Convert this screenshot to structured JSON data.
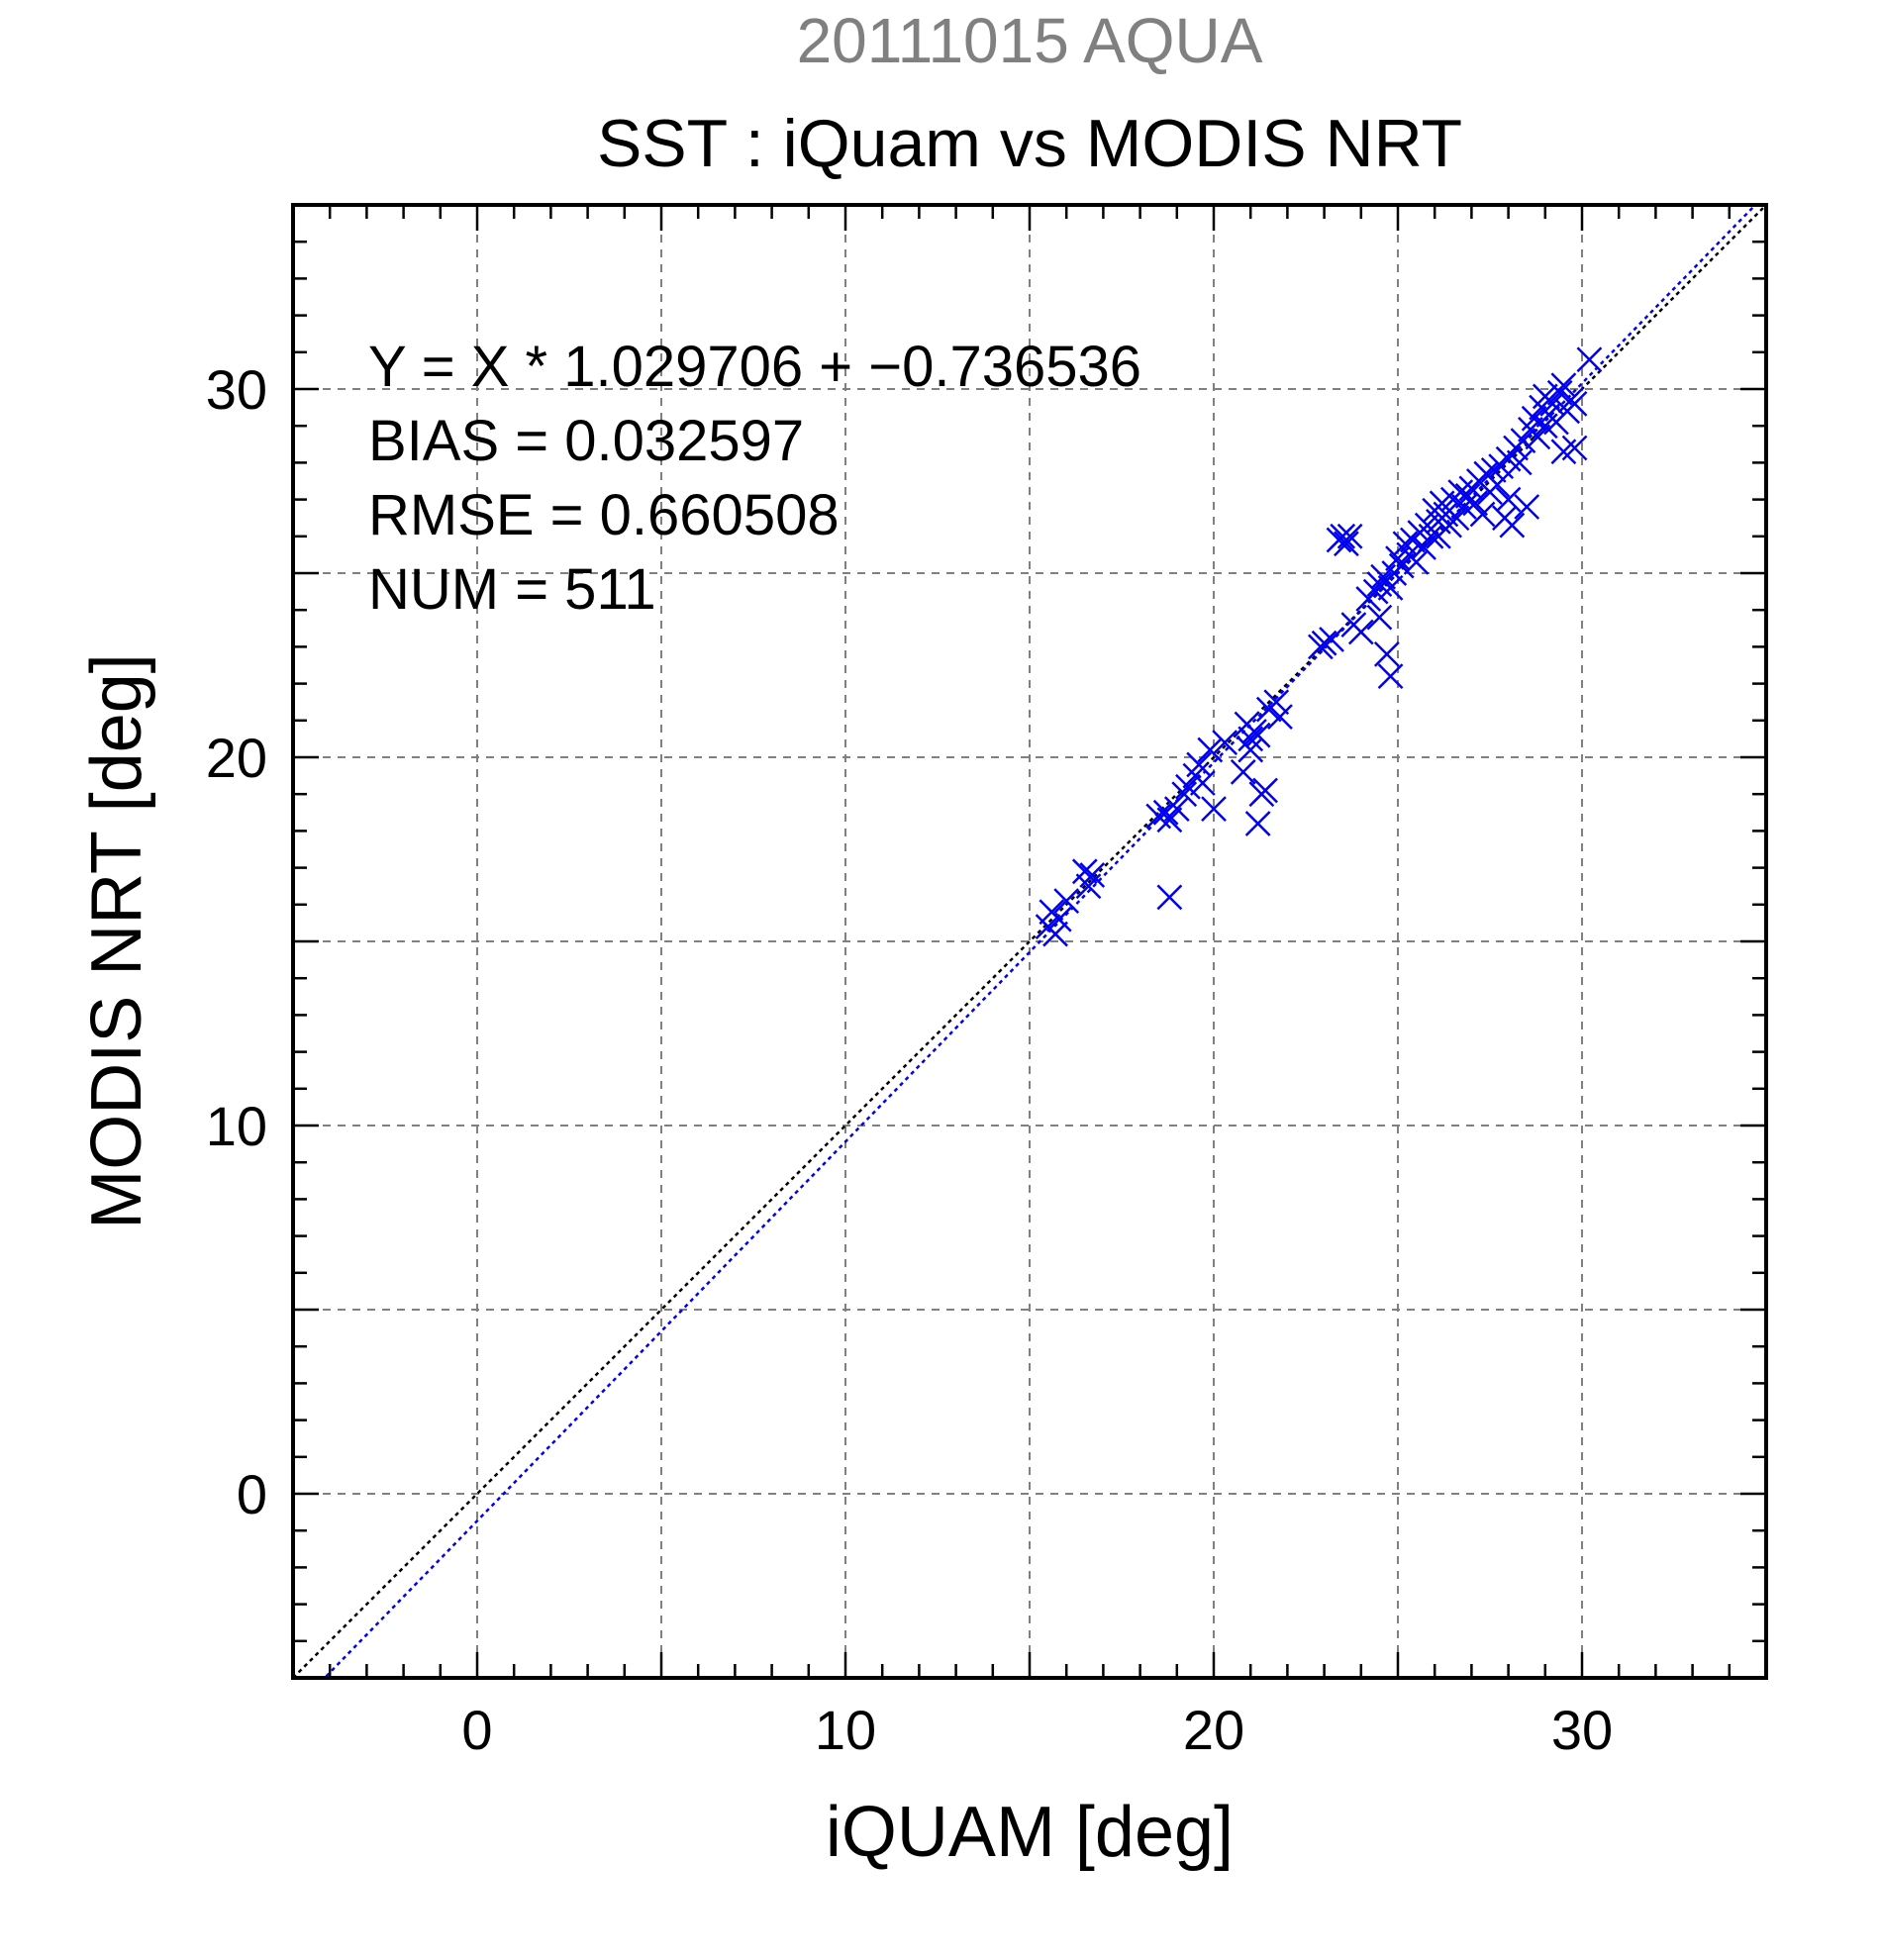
{
  "chart_data": {
    "type": "scatter",
    "supertitle": "20111015 AQUA",
    "title": "SST : iQuam vs MODIS NRT",
    "xlabel": "iQUAM [deg]",
    "ylabel": "MODIS NRT [deg]",
    "xlim": [
      -5,
      35
    ],
    "ylim": [
      -5,
      35
    ],
    "xticks": [
      0,
      10,
      20,
      30
    ],
    "yticks": [
      0,
      10,
      20,
      30
    ],
    "xtick_labels": [
      "0",
      "10",
      "20",
      "30"
    ],
    "ytick_labels": [
      "0",
      "10",
      "20",
      "30"
    ],
    "grid_step": 5,
    "minor_step": 1,
    "grid": true,
    "stats": [
      "Y = X * 1.029706 + −0.736536",
      "BIAS = 0.032597",
      "RMSE = 0.660508",
      "NUM = 511"
    ],
    "fit": {
      "slope": 1.029706,
      "intercept": -0.736536,
      "color": "#0000ee"
    },
    "identity_line": {
      "slope": 1,
      "intercept": 0,
      "color": "#000000"
    },
    "marker": "x",
    "marker_color": "#0000ee",
    "grid_color": "#808080",
    "supertitle_color": "#808080",
    "x": [
      15.5,
      15.6,
      15.7,
      15.8,
      16.0,
      16.5,
      16.6,
      16.7,
      18.5,
      18.7,
      18.8,
      18.8,
      19.0,
      19.2,
      19.3,
      19.5,
      19.6,
      19.7,
      19.9,
      20.0,
      20.3,
      20.8,
      20.9,
      21.0,
      21.0,
      21.1,
      21.2,
      21.2,
      21.3,
      21.4,
      21.5,
      21.7,
      21.8,
      22.9,
      23.0,
      23.2,
      23.4,
      23.5,
      23.6,
      23.7,
      23.8,
      24.0,
      24.2,
      24.4,
      24.5,
      24.5,
      24.6,
      24.7,
      24.8,
      24.8,
      24.9,
      25.0,
      25.1,
      25.2,
      25.3,
      25.4,
      25.5,
      25.6,
      25.7,
      25.8,
      25.9,
      26.0,
      26.1,
      26.1,
      26.2,
      26.3,
      26.4,
      26.5,
      26.6,
      26.7,
      26.8,
      26.9,
      27.0,
      27.1,
      27.2,
      27.3,
      27.4,
      27.5,
      27.6,
      27.7,
      27.8,
      27.9,
      28.0,
      28.0,
      28.1,
      28.2,
      28.3,
      28.4,
      28.5,
      28.6,
      28.7,
      28.8,
      28.9,
      29.0,
      29.0,
      29.1,
      29.2,
      29.3,
      29.4,
      29.5,
      29.6,
      29.7,
      29.8,
      29.5,
      29.8,
      30.2
    ],
    "y": [
      15.4,
      15.8,
      15.2,
      15.6,
      16.1,
      16.9,
      16.5,
      16.8,
      18.4,
      18.5,
      18.3,
      16.2,
      18.6,
      19.0,
      19.2,
      19.5,
      19.8,
      19.3,
      20.2,
      18.6,
      20.4,
      19.6,
      20.9,
      20.5,
      20.2,
      20.7,
      20.6,
      18.2,
      19.0,
      19.1,
      21.3,
      21.5,
      21.1,
      23.0,
      23.1,
      23.2,
      25.9,
      26.0,
      25.8,
      26.0,
      23.6,
      23.4,
      24.3,
      24.5,
      23.8,
      24.7,
      24.9,
      22.8,
      24.6,
      22.2,
      25.0,
      25.4,
      25.2,
      25.8,
      25.5,
      25.9,
      25.3,
      26.1,
      25.7,
      26.3,
      26.0,
      26.7,
      26.4,
      26.0,
      26.9,
      26.6,
      26.3,
      27.0,
      26.5,
      27.2,
      26.8,
      27.1,
      27.3,
      26.9,
      27.5,
      26.6,
      27.7,
      27.2,
      27.8,
      27.4,
      27.9,
      26.5,
      28.1,
      27.0,
      26.3,
      28.4,
      28.0,
      28.6,
      26.8,
      28.9,
      29.2,
      28.7,
      29.5,
      29.0,
      29.8,
      29.3,
      29.6,
      29.1,
      29.9,
      30.1,
      29.4,
      29.7,
      28.4,
      28.3,
      29.6,
      30.8
    ]
  }
}
